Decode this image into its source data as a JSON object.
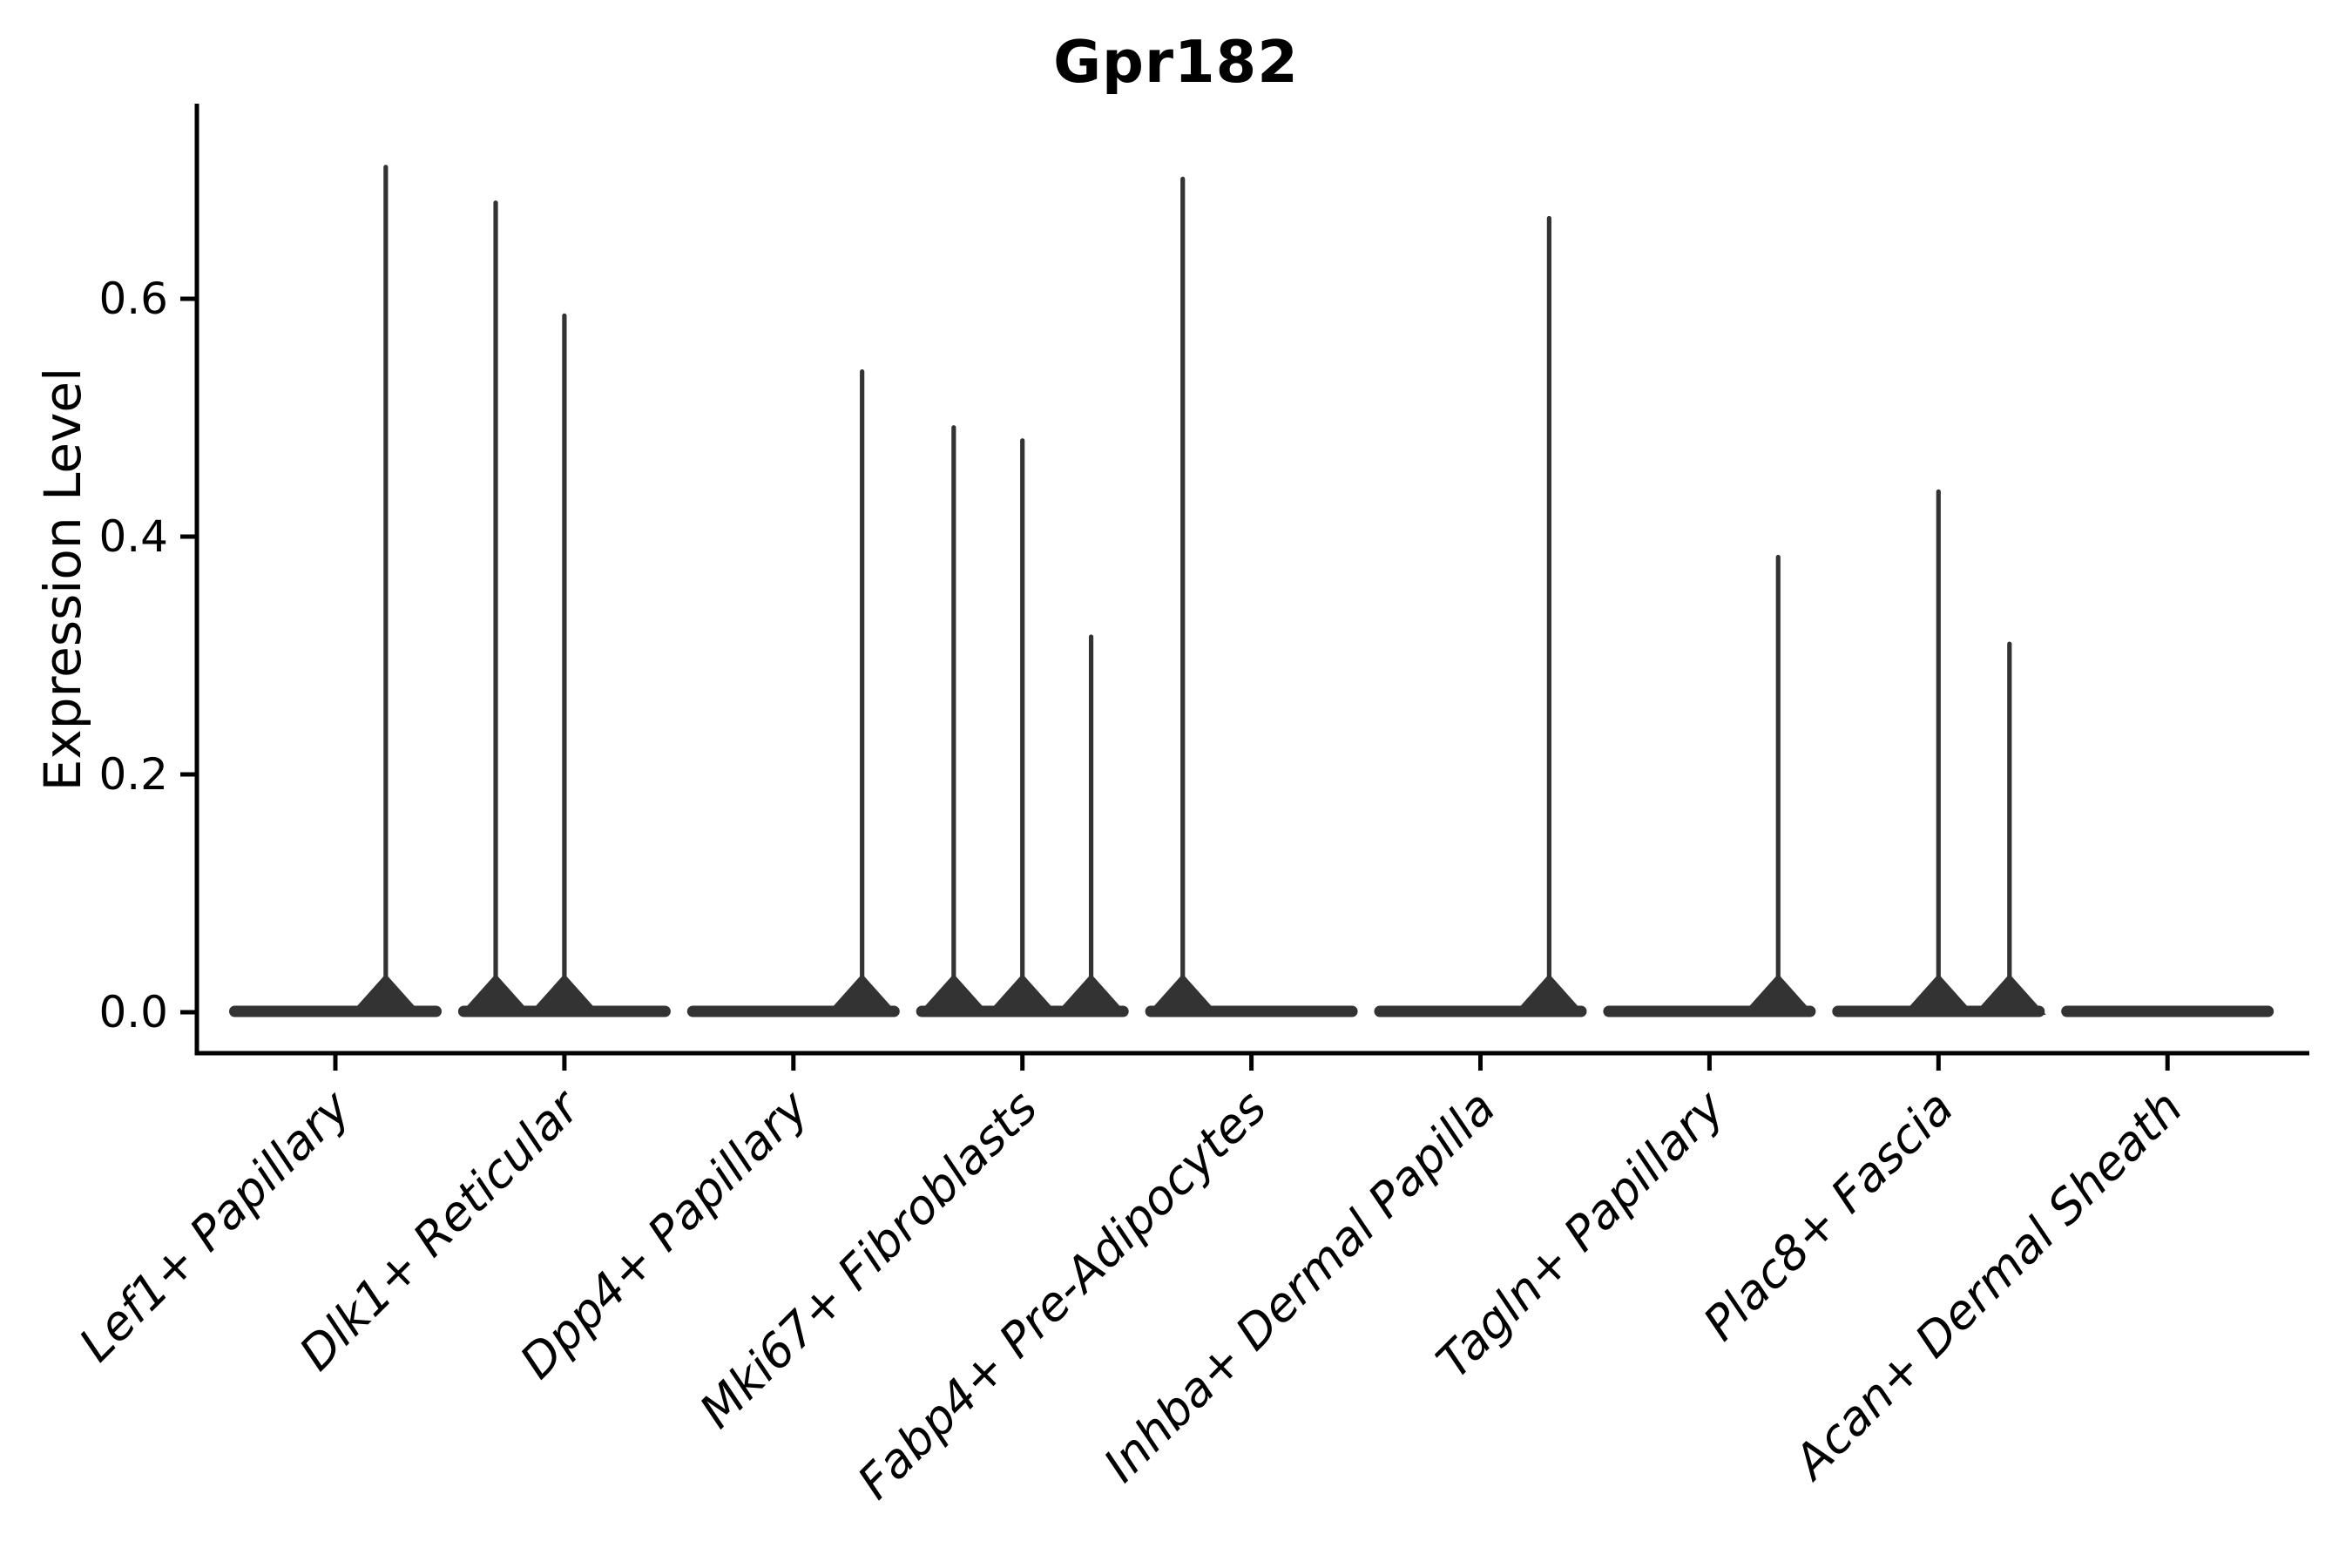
{
  "chart_data": {
    "type": "violin",
    "title": "Gpr182",
    "ylabel": "Expression Level",
    "xlabel": "",
    "grid": false,
    "legend": "none",
    "ytick_labels": [
      "0.0",
      "0.2",
      "0.4",
      "0.6"
    ],
    "ytick_values": [
      0.0,
      0.2,
      0.4,
      0.6
    ],
    "ylim": [
      -0.034,
      0.764
    ],
    "categories": [
      "Lef1+ Papillary",
      "Dlk1+ Reticular",
      "Dpp4+ Papillary",
      "Mki67+ Fibroblasts",
      "Fabp4+ Pre-Adipocytes",
      "Inhba+ Dermal Papilla",
      "Tagln+ Papillary",
      "Plac8+ Fascia",
      "Acan+ Dermal Sheath"
    ],
    "series": [
      {
        "category": "Lef1+ Papillary",
        "baseline_value": 0.0,
        "needles": [
          {
            "offset": 0.22,
            "value": 0.713
          }
        ]
      },
      {
        "category": "Dlk1+ Reticular",
        "baseline_value": 0.0,
        "needles": [
          {
            "offset": -0.3,
            "value": 0.683
          },
          {
            "offset": 0.0,
            "value": 0.588
          }
        ]
      },
      {
        "category": "Dpp4+ Papillary",
        "baseline_value": 0.0,
        "needles": [
          {
            "offset": 0.3,
            "value": 0.541
          }
        ]
      },
      {
        "category": "Mki67+ Fibroblasts",
        "baseline_value": 0.0,
        "needles": [
          {
            "offset": -0.3,
            "value": 0.494
          },
          {
            "offset": 0.0,
            "value": 0.483
          },
          {
            "offset": 0.3,
            "value": 0.318
          }
        ]
      },
      {
        "category": "Fabp4+ Pre-Adipocytes",
        "baseline_value": 0.0,
        "needles": [
          {
            "offset": -0.3,
            "value": 0.703
          }
        ]
      },
      {
        "category": "Inhba+ Dermal Papilla",
        "baseline_value": 0.0,
        "needles": [
          {
            "offset": 0.3,
            "value": 0.67
          }
        ]
      },
      {
        "category": "Tagln+ Papillary",
        "baseline_value": 0.0,
        "needles": [
          {
            "offset": 0.3,
            "value": 0.385
          }
        ]
      },
      {
        "category": "Plac8+ Fascia",
        "baseline_value": 0.0,
        "needles": [
          {
            "offset": 0.0,
            "value": 0.44
          },
          {
            "offset": 0.31,
            "value": 0.312
          }
        ]
      },
      {
        "category": "Acan+ Dermal Sheath",
        "baseline_value": 0.0,
        "needles": []
      }
    ],
    "style": {
      "violin_color": "#333333",
      "axis_color": "#000000",
      "text_color": "#000000",
      "background_color": "#ffffff",
      "violin_body_width_frac": 0.93
    }
  }
}
